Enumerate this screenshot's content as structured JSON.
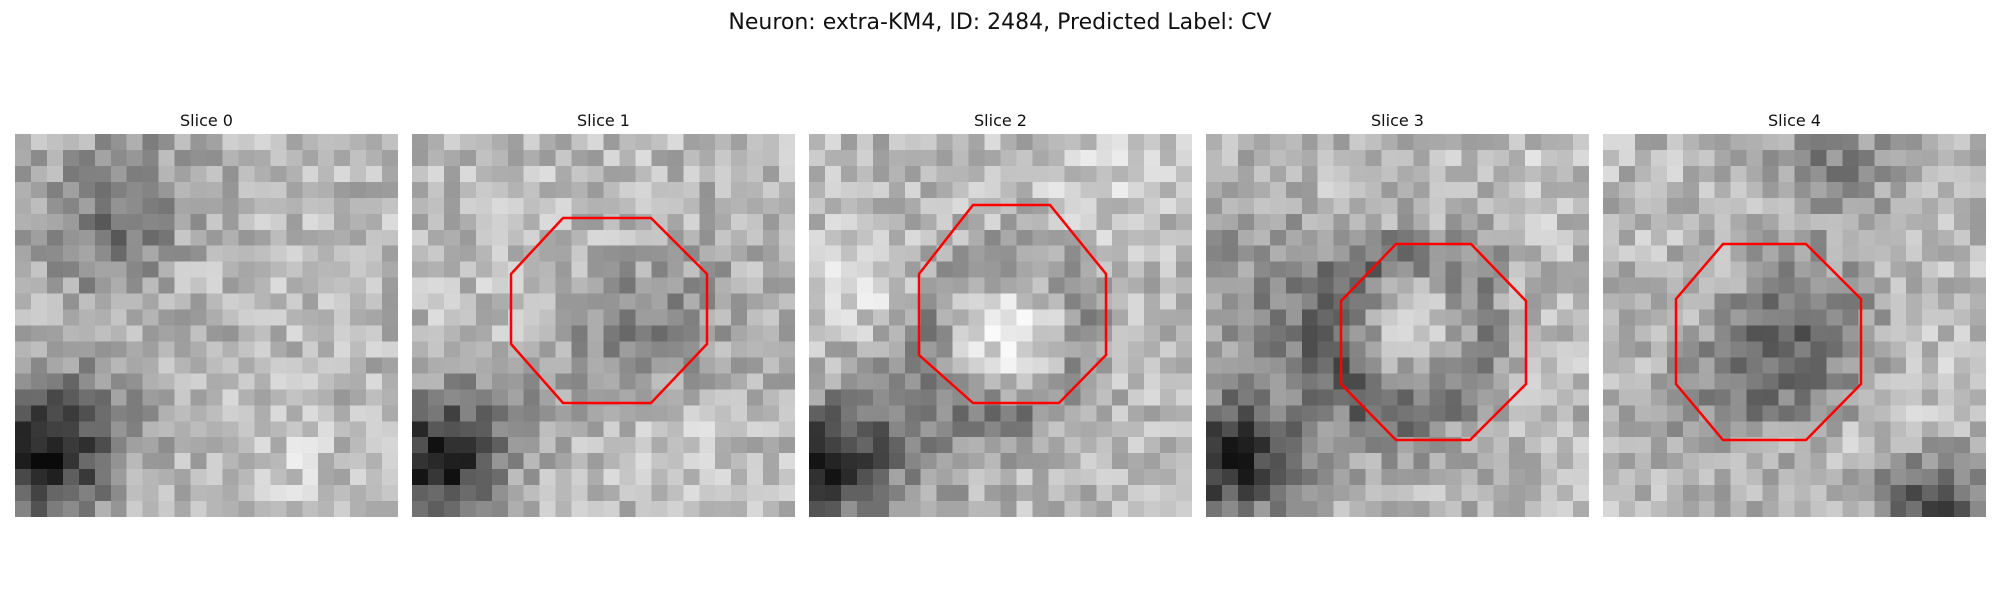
{
  "figure": {
    "title": "Neuron: extra-KM4, ID: 2484, Predicted Label: CV"
  },
  "panels": [
    {
      "title": "Slice 0",
      "roi_shown": false
    },
    {
      "title": "Slice 1",
      "roi_shown": true
    },
    {
      "title": "Slice 2",
      "roi_shown": true
    },
    {
      "title": "Slice 3",
      "roi_shown": true
    },
    {
      "title": "Slice 4",
      "roi_shown": true
    }
  ],
  "colors": {
    "roi_outline": "#ff0000",
    "background": "#ffffff"
  }
}
